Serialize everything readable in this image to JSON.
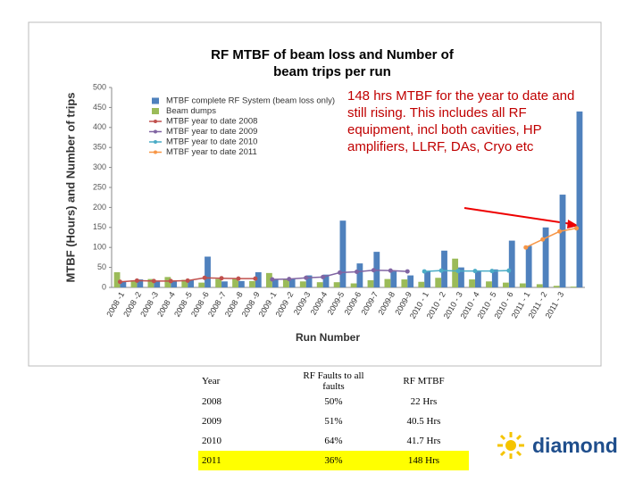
{
  "chart_data": {
    "type": "bar",
    "title": "RF MTBF of beam loss and Number of beam trips per run",
    "x_label": "Run Number",
    "y_label": "MTBF (Hours) and Number of trips",
    "categories": [
      "2008 -1",
      "2008 -2",
      "2008 -3",
      "2008 -4",
      "2008 -5",
      "2008 -6",
      "2008 -7",
      "2008 -8",
      "2008 -9",
      "2009 -1",
      "2009 -2",
      "2009-3",
      "2009-4",
      "2009-5",
      "2009-6",
      "2009-7",
      "2009-8",
      "2009-9",
      "2010 - 1",
      "2010 - 2",
      "2010 - 3",
      "2010 - 4",
      "2010 - 5",
      "2010 - 6",
      "2011 - 1",
      "2011 - 2",
      "2011 - 3",
      null
    ],
    "series": [
      {
        "name": "MTBF complete RF System (beam loss only)",
        "color": "#4f81bd",
        "kind": "bar",
        "values": [
          14,
          20,
          15,
          15,
          18,
          77,
          15,
          16,
          38,
          20,
          22,
          30,
          32,
          167,
          60,
          89,
          40,
          30,
          40,
          92,
          50,
          40,
          45,
          117,
          104,
          150,
          232,
          440
        ]
      },
      {
        "name": "Beam dumps",
        "color": "#9bbb59",
        "kind": "bar",
        "values": [
          38,
          18,
          21,
          26,
          19,
          12,
          21,
          23,
          16,
          36,
          20,
          15,
          13,
          13,
          10,
          18,
          21,
          20,
          14,
          24,
          72,
          20,
          15,
          12,
          10,
          8,
          4,
          2
        ]
      },
      {
        "name": "MTBF year to date 2008",
        "color": "#c0504d",
        "kind": "line",
        "values": [
          14,
          17,
          16,
          16,
          17,
          24,
          23,
          22,
          22,
          null,
          null,
          null,
          null,
          null,
          null,
          null,
          null,
          null,
          null,
          null,
          null,
          null,
          null,
          null,
          null,
          null,
          null,
          null
        ]
      },
      {
        "name": "MTBF year to date 2009",
        "color": "#8064a2",
        "kind": "line",
        "values": [
          null,
          null,
          null,
          null,
          null,
          null,
          null,
          null,
          null,
          20,
          21,
          24,
          26,
          37,
          39,
          43,
          42,
          40,
          null,
          null,
          null,
          null,
          null,
          null,
          null,
          null,
          null,
          null
        ]
      },
      {
        "name": "MTBF year to date 2010",
        "color": "#4bacc6",
        "kind": "line",
        "values": [
          null,
          null,
          null,
          null,
          null,
          null,
          null,
          null,
          null,
          null,
          null,
          null,
          null,
          null,
          null,
          null,
          null,
          null,
          40,
          42,
          41,
          41,
          41,
          42,
          null,
          null,
          null,
          null
        ]
      },
      {
        "name": "MTBF year to date 2011",
        "color": "#f79646",
        "kind": "line",
        "values": [
          null,
          null,
          null,
          null,
          null,
          null,
          null,
          null,
          null,
          null,
          null,
          null,
          null,
          null,
          null,
          null,
          null,
          null,
          null,
          null,
          null,
          null,
          null,
          null,
          100,
          120,
          140,
          148
        ]
      }
    ],
    "ylim": [
      0,
      500
    ],
    "yticks": [
      0,
      50,
      100,
      150,
      200,
      250,
      300,
      350,
      400,
      450,
      500
    ],
    "annotation": "148 hrs MTBF for the year to date and still rising. This includes all RF equipment, incl both cavities, HP amplifiers, LLRF, DAs, Cryo etc"
  },
  "table": {
    "header": [
      "Year",
      "RF Faults to all faults",
      "RF MTBF"
    ],
    "rows": [
      [
        "2008",
        "50%",
        "22 Hrs"
      ],
      [
        "2009",
        "51%",
        "40.5 Hrs"
      ],
      [
        "2010",
        "64%",
        "41.7 Hrs"
      ],
      [
        "2011",
        "36%",
        "148 Hrs"
      ]
    ]
  },
  "logo": "diamond"
}
